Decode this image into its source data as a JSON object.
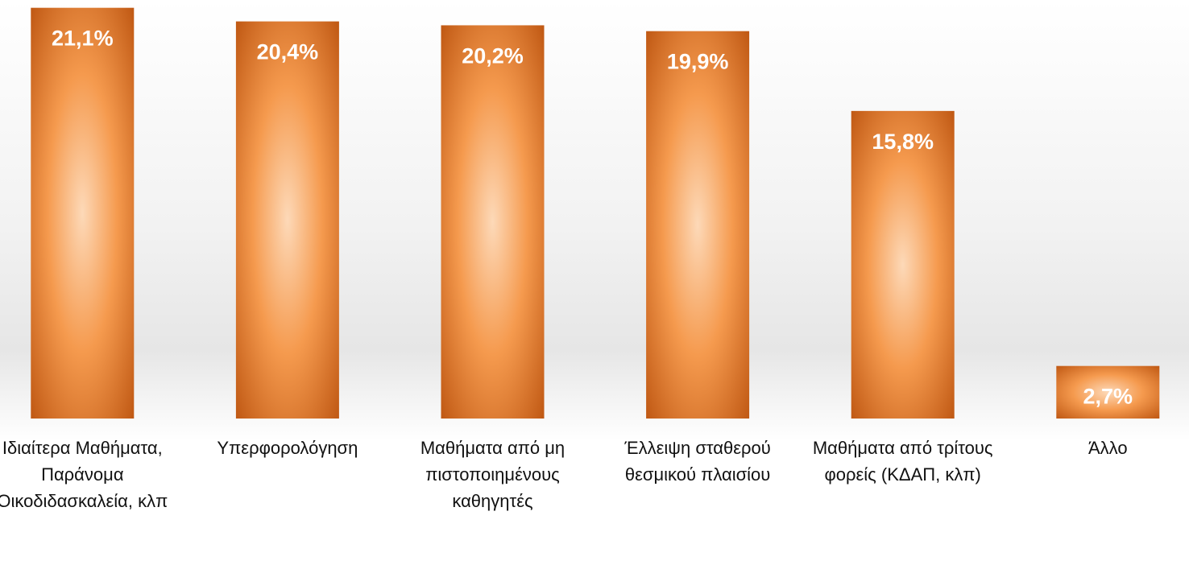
{
  "chart_data": {
    "type": "bar",
    "categories": [
      "Ιδιαίτερα Μαθήματα, Παράνομα Οικοδιδασκαλεία, κλπ",
      "Υπερφορολόγηση",
      "Μαθήματα από μη πιστοποιημένους καθηγητές",
      "Έλλειψη σταθερού θεσμικού πλαισίου",
      "Μαθήματα από τρίτους φορείς (ΚΔΑΠ, κλπ)",
      "Άλλο"
    ],
    "values": [
      21.1,
      20.4,
      20.2,
      19.9,
      15.8,
      2.7
    ],
    "value_labels": [
      "21,1%",
      "20,4%",
      "20,2%",
      "19,9%",
      "15,8%",
      "2,7%"
    ],
    "color": "#c8600f",
    "ylim": [
      0,
      21.5
    ]
  }
}
